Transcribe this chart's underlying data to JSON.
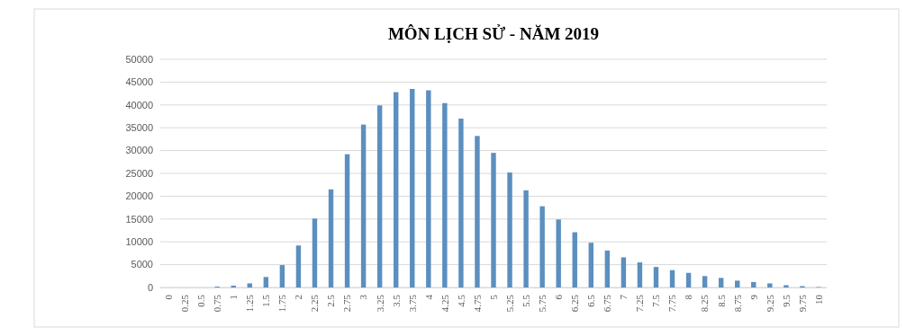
{
  "chart_data": {
    "type": "bar",
    "title": "MÔN LỊCH SỬ - NĂM 2019",
    "categories": [
      "0",
      "0.25",
      "0.5",
      "0.75",
      "1",
      "1.25",
      "1.5",
      "1.75",
      "2",
      "2.25",
      "2.5",
      "2.75",
      "3",
      "3.25",
      "3.5",
      "3.75",
      "4",
      "4.25",
      "4.5",
      "4.75",
      "5",
      "5.25",
      "5.5",
      "5.75",
      "6",
      "6.25",
      "6.5",
      "6.75",
      "7",
      "7.25",
      "7.5",
      "7.75",
      "8",
      "8.25",
      "8.5",
      "8.75",
      "9",
      "9.25",
      "9.5",
      "9.75",
      "10"
    ],
    "values": [
      0,
      0,
      0,
      200,
      400,
      900,
      2300,
      4900,
      9200,
      15100,
      21500,
      29200,
      35700,
      39900,
      42800,
      43500,
      43200,
      40400,
      37000,
      33200,
      29500,
      25200,
      21300,
      17800,
      14900,
      12100,
      9800,
      8100,
      6600,
      5500,
      4500,
      3800,
      3200,
      2500,
      2100,
      1500,
      1200,
      900,
      500,
      300,
      100
    ],
    "color": "#5b8fbf",
    "ylim": [
      0,
      50000
    ],
    "yticks": [
      0,
      5000,
      10000,
      15000,
      20000,
      25000,
      30000,
      35000,
      40000,
      45000,
      50000
    ],
    "grid": "y"
  }
}
